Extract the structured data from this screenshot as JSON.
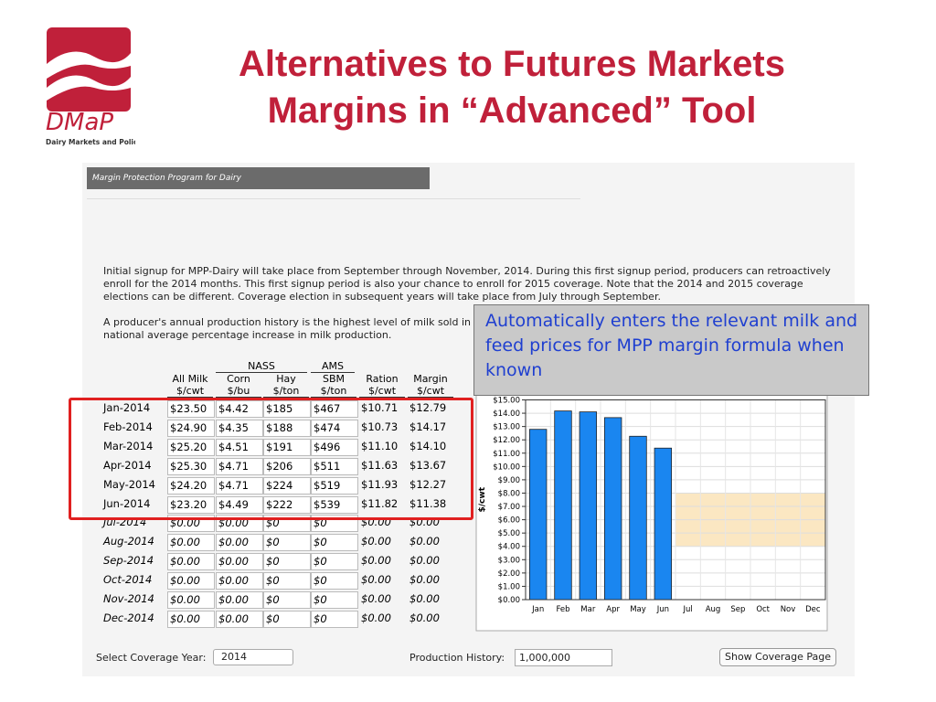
{
  "logo": {
    "name": "DMaP",
    "tagline": "Dairy Markets and Policy"
  },
  "header": {
    "title_line1": "Alternatives to Futures Markets",
    "title_line2": "Margins in “Advanced” Tool"
  },
  "panel": {
    "title": "Margin Protection Program for Dairy",
    "paragraph1": "Initial signup for MPP-Dairy will take place from September through November, 2014. During this first signup period, producers can retroactively enroll for the 2014 months. This first signup period is also your chance to enroll for 2015 coverage. Note that the 2014 and 2015 coverage elections can be different. Coverage election in subsequent years will take place from July through September.",
    "paragraph2": "A producer's annual production history is the highest level of milk sold in any one of the 2011, 2012, or 2013 calendar years, adjusted by the national average percentage increase in milk production."
  },
  "table": {
    "groups": {
      "nass": "NASS",
      "ams": "AMS"
    },
    "columns": [
      {
        "name": "All Milk",
        "unit": "$/cwt"
      },
      {
        "name": "Corn",
        "unit": "$/bu"
      },
      {
        "name": "Hay",
        "unit": "$/ton"
      },
      {
        "name": "SBM",
        "unit": "$/ton"
      },
      {
        "name": "Ration",
        "unit": "$/cwt"
      },
      {
        "name": "Margin",
        "unit": "$/cwt"
      }
    ],
    "rows_known": [
      [
        "Jan-2014",
        "$23.50",
        "$4.42",
        "$185",
        "$467",
        "$10.71",
        "$12.79"
      ],
      [
        "Feb-2014",
        "$24.90",
        "$4.35",
        "$188",
        "$474",
        "$10.73",
        "$14.17"
      ],
      [
        "Mar-2014",
        "$25.20",
        "$4.51",
        "$191",
        "$496",
        "$11.10",
        "$14.10"
      ],
      [
        "Apr-2014",
        "$25.30",
        "$4.71",
        "$206",
        "$511",
        "$11.63",
        "$13.67"
      ],
      [
        "May-2014",
        "$24.20",
        "$4.71",
        "$224",
        "$519",
        "$11.93",
        "$12.27"
      ],
      [
        "Jun-2014",
        "$23.20",
        "$4.49",
        "$222",
        "$539",
        "$11.82",
        "$11.38"
      ]
    ],
    "rows_future": [
      [
        "Jul-2014",
        "$0.00",
        "$0.00",
        "$0",
        "$0",
        "$0.00",
        "$0.00"
      ],
      [
        "Aug-2014",
        "$0.00",
        "$0.00",
        "$0",
        "$0",
        "$0.00",
        "$0.00"
      ],
      [
        "Sep-2014",
        "$0.00",
        "$0.00",
        "$0",
        "$0",
        "$0.00",
        "$0.00"
      ],
      [
        "Oct-2014",
        "$0.00",
        "$0.00",
        "$0",
        "$0",
        "$0.00",
        "$0.00"
      ],
      [
        "Nov-2014",
        "$0.00",
        "$0.00",
        "$0",
        "$0",
        "$0.00",
        "$0.00"
      ],
      [
        "Dec-2014",
        "$0.00",
        "$0.00",
        "$0",
        "$0",
        "$0.00",
        "$0.00"
      ]
    ]
  },
  "chart_data": {
    "type": "bar",
    "y_label": "$/cwt",
    "categories": [
      "Jan",
      "Feb",
      "Mar",
      "Apr",
      "May",
      "Jun",
      "Jul",
      "Aug",
      "Sep",
      "Oct",
      "Nov",
      "Dec"
    ],
    "values": [
      12.79,
      14.17,
      14.1,
      13.67,
      12.27,
      11.38,
      0,
      0,
      0,
      0,
      0,
      0
    ],
    "color": "#1a86f0",
    "ylim": [
      0,
      15
    ],
    "yticks": [
      {
        "value": 0,
        "label": "$0.00"
      },
      {
        "value": 1,
        "label": "$1.00"
      },
      {
        "value": 2,
        "label": "$2.00"
      },
      {
        "value": 3,
        "label": "$3.00"
      },
      {
        "value": 4,
        "label": "$4.00"
      },
      {
        "value": 5,
        "label": "$5.00"
      },
      {
        "value": 6,
        "label": "$6.00"
      },
      {
        "value": 7,
        "label": "$7.00"
      },
      {
        "value": 8,
        "label": "$8.00"
      },
      {
        "value": 9,
        "label": "$9.00"
      },
      {
        "value": 10,
        "label": "$10.00"
      },
      {
        "value": 11,
        "label": "$11.00"
      },
      {
        "value": 12,
        "label": "$12.00"
      },
      {
        "value": 13,
        "label": "$13.00"
      },
      {
        "value": 14,
        "label": "$14.00"
      },
      {
        "value": 15,
        "label": "$15.00"
      }
    ],
    "grid": true
  },
  "controls": {
    "year_label": "Select Coverage Year:",
    "year_value": "2014",
    "history_label": "Production History:",
    "history_value": "1,000,000",
    "button": "Show Coverage Page"
  },
  "callout": "Automatically enters the relevant milk and feed prices for MPP margin formula when known"
}
